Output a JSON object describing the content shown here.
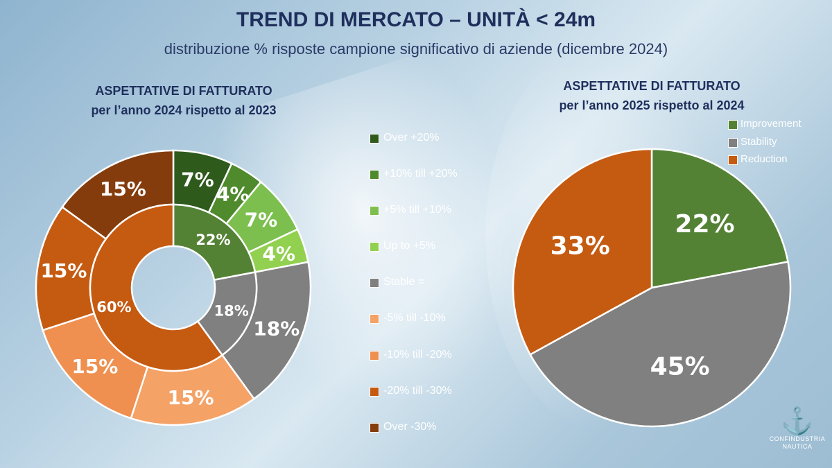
{
  "title": "TREND DI MERCATO – UNITÀ < 24m",
  "subtitle": "distribuzione % risposte campione significativo di aziende (dicembre 2024)",
  "logo": {
    "line1": "CONFINDUSTRIA",
    "line2": "NAUTICA"
  },
  "chart_data": [
    {
      "type": "pie",
      "variant": "nested-donut",
      "title_line1": "ASPETTATIVE DI FATTURATO",
      "title_line2": "per l’anno 2024 rispetto al 2023",
      "outer": {
        "categories": [
          "Over +20%",
          "+10% till +20%",
          "+5% till +10%",
          "Up to +5%",
          "Stable =",
          "-5% till -10%",
          "-10% till -20%",
          "-20% till -30%",
          "Over -30%"
        ],
        "values": [
          7,
          4,
          7,
          4,
          18,
          15,
          15,
          15,
          15
        ],
        "labels": [
          "7%",
          "4%",
          "7%",
          "4%",
          "18%",
          "15%",
          "15%",
          "15%",
          "15%"
        ],
        "colors": [
          "#2e5a1c",
          "#4f8a2c",
          "#7cbf4f",
          "#92d050",
          "#808080",
          "#f4a266",
          "#ef9050",
          "#c55a11",
          "#843c0c"
        ]
      },
      "inner": {
        "categories": [
          "Improvement",
          "Stability",
          "Reduction"
        ],
        "values": [
          22,
          18,
          60
        ],
        "labels": [
          "22%",
          "18%",
          "60%"
        ],
        "colors": [
          "#548235",
          "#808080",
          "#c55a11"
        ]
      },
      "legend_position": "right"
    },
    {
      "type": "pie",
      "title_line1": "ASPETTATIVE DI FATTURATO",
      "title_line2": "per l’anno 2025 rispetto al 2024",
      "categories": [
        "Improvement",
        "Stability",
        "Reduction"
      ],
      "values": [
        22,
        45,
        33
      ],
      "labels": [
        "22%",
        "45%",
        "33%"
      ],
      "colors": [
        "#548235",
        "#808080",
        "#c55a11"
      ],
      "legend_position": "top-right"
    }
  ]
}
